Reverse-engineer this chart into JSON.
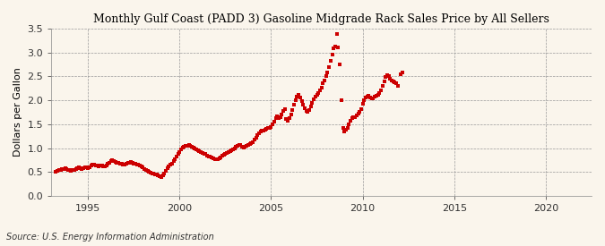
{
  "title": "Monthly Gulf Coast (PADD 3) Gasoline Midgrade Rack Sales Price by All Sellers",
  "ylabel": "Dollars per Gallon",
  "source": "Source: U.S. Energy Information Administration",
  "background_color": "#FAF5EC",
  "dot_color": "#CC0000",
  "xlim": [
    1993.0,
    2022.5
  ],
  "ylim": [
    0.0,
    3.5
  ],
  "yticks": [
    0.0,
    0.5,
    1.0,
    1.5,
    2.0,
    2.5,
    3.0,
    3.5
  ],
  "xticks": [
    1995,
    2000,
    2005,
    2010,
    2015,
    2020
  ],
  "data": [
    [
      1993.25,
      0.5
    ],
    [
      1993.33,
      0.52
    ],
    [
      1993.42,
      0.54
    ],
    [
      1993.5,
      0.55
    ],
    [
      1993.58,
      0.57
    ],
    [
      1993.67,
      0.56
    ],
    [
      1993.75,
      0.58
    ],
    [
      1993.83,
      0.57
    ],
    [
      1993.92,
      0.55
    ],
    [
      1994.0,
      0.54
    ],
    [
      1994.08,
      0.53
    ],
    [
      1994.17,
      0.54
    ],
    [
      1994.25,
      0.55
    ],
    [
      1994.33,
      0.57
    ],
    [
      1994.42,
      0.58
    ],
    [
      1994.5,
      0.59
    ],
    [
      1994.58,
      0.58
    ],
    [
      1994.67,
      0.57
    ],
    [
      1994.75,
      0.58
    ],
    [
      1994.83,
      0.6
    ],
    [
      1994.92,
      0.59
    ],
    [
      1995.0,
      0.58
    ],
    [
      1995.08,
      0.6
    ],
    [
      1995.17,
      0.63
    ],
    [
      1995.25,
      0.65
    ],
    [
      1995.33,
      0.66
    ],
    [
      1995.42,
      0.64
    ],
    [
      1995.5,
      0.63
    ],
    [
      1995.58,
      0.62
    ],
    [
      1995.67,
      0.63
    ],
    [
      1995.75,
      0.64
    ],
    [
      1995.83,
      0.62
    ],
    [
      1995.92,
      0.61
    ],
    [
      1996.0,
      0.64
    ],
    [
      1996.08,
      0.67
    ],
    [
      1996.17,
      0.7
    ],
    [
      1996.25,
      0.72
    ],
    [
      1996.33,
      0.74
    ],
    [
      1996.42,
      0.73
    ],
    [
      1996.5,
      0.71
    ],
    [
      1996.58,
      0.7
    ],
    [
      1996.67,
      0.69
    ],
    [
      1996.75,
      0.68
    ],
    [
      1996.83,
      0.67
    ],
    [
      1996.92,
      0.66
    ],
    [
      1997.0,
      0.65
    ],
    [
      1997.08,
      0.67
    ],
    [
      1997.17,
      0.69
    ],
    [
      1997.25,
      0.7
    ],
    [
      1997.33,
      0.71
    ],
    [
      1997.42,
      0.7
    ],
    [
      1997.5,
      0.68
    ],
    [
      1997.58,
      0.67
    ],
    [
      1997.67,
      0.66
    ],
    [
      1997.75,
      0.65
    ],
    [
      1997.83,
      0.64
    ],
    [
      1997.92,
      0.62
    ],
    [
      1998.0,
      0.6
    ],
    [
      1998.08,
      0.57
    ],
    [
      1998.17,
      0.55
    ],
    [
      1998.25,
      0.53
    ],
    [
      1998.33,
      0.51
    ],
    [
      1998.42,
      0.49
    ],
    [
      1998.5,
      0.47
    ],
    [
      1998.58,
      0.46
    ],
    [
      1998.67,
      0.45
    ],
    [
      1998.75,
      0.44
    ],
    [
      1998.83,
      0.43
    ],
    [
      1998.92,
      0.41
    ],
    [
      1999.0,
      0.4
    ],
    [
      1999.08,
      0.43
    ],
    [
      1999.17,
      0.47
    ],
    [
      1999.25,
      0.52
    ],
    [
      1999.33,
      0.58
    ],
    [
      1999.42,
      0.62
    ],
    [
      1999.5,
      0.65
    ],
    [
      1999.58,
      0.68
    ],
    [
      1999.67,
      0.72
    ],
    [
      1999.75,
      0.77
    ],
    [
      1999.83,
      0.82
    ],
    [
      1999.92,
      0.88
    ],
    [
      2000.0,
      0.92
    ],
    [
      2000.08,
      0.98
    ],
    [
      2000.17,
      1.01
    ],
    [
      2000.25,
      1.03
    ],
    [
      2000.33,
      1.04
    ],
    [
      2000.42,
      1.05
    ],
    [
      2000.5,
      1.06
    ],
    [
      2000.58,
      1.04
    ],
    [
      2000.67,
      1.02
    ],
    [
      2000.75,
      1.01
    ],
    [
      2000.83,
      0.99
    ],
    [
      2000.92,
      0.97
    ],
    [
      2001.0,
      0.95
    ],
    [
      2001.08,
      0.93
    ],
    [
      2001.17,
      0.91
    ],
    [
      2001.25,
      0.9
    ],
    [
      2001.33,
      0.88
    ],
    [
      2001.42,
      0.87
    ],
    [
      2001.5,
      0.85
    ],
    [
      2001.58,
      0.83
    ],
    [
      2001.67,
      0.82
    ],
    [
      2001.75,
      0.8
    ],
    [
      2001.83,
      0.79
    ],
    [
      2001.92,
      0.77
    ],
    [
      2002.0,
      0.76
    ],
    [
      2002.08,
      0.77
    ],
    [
      2002.17,
      0.79
    ],
    [
      2002.25,
      0.81
    ],
    [
      2002.33,
      0.84
    ],
    [
      2002.42,
      0.86
    ],
    [
      2002.5,
      0.88
    ],
    [
      2002.58,
      0.9
    ],
    [
      2002.67,
      0.91
    ],
    [
      2002.75,
      0.93
    ],
    [
      2002.83,
      0.95
    ],
    [
      2002.92,
      0.97
    ],
    [
      2003.0,
      1.0
    ],
    [
      2003.08,
      1.03
    ],
    [
      2003.17,
      1.05
    ],
    [
      2003.25,
      1.06
    ],
    [
      2003.33,
      1.07
    ],
    [
      2003.42,
      1.03
    ],
    [
      2003.5,
      1.01
    ],
    [
      2003.58,
      1.02
    ],
    [
      2003.67,
      1.04
    ],
    [
      2003.75,
      1.06
    ],
    [
      2003.83,
      1.08
    ],
    [
      2003.92,
      1.1
    ],
    [
      2004.0,
      1.13
    ],
    [
      2004.08,
      1.17
    ],
    [
      2004.17,
      1.22
    ],
    [
      2004.25,
      1.27
    ],
    [
      2004.33,
      1.31
    ],
    [
      2004.42,
      1.34
    ],
    [
      2004.5,
      1.36
    ],
    [
      2004.58,
      1.37
    ],
    [
      2004.67,
      1.39
    ],
    [
      2004.75,
      1.41
    ],
    [
      2004.83,
      1.42
    ],
    [
      2004.92,
      1.43
    ],
    [
      2005.0,
      1.44
    ],
    [
      2005.08,
      1.5
    ],
    [
      2005.17,
      1.56
    ],
    [
      2005.25,
      1.62
    ],
    [
      2005.33,
      1.67
    ],
    [
      2005.42,
      1.62
    ],
    [
      2005.5,
      1.65
    ],
    [
      2005.58,
      1.7
    ],
    [
      2005.67,
      1.78
    ],
    [
      2005.75,
      1.82
    ],
    [
      2005.83,
      1.6
    ],
    [
      2005.92,
      1.58
    ],
    [
      2006.0,
      1.62
    ],
    [
      2006.08,
      1.7
    ],
    [
      2006.17,
      1.8
    ],
    [
      2006.25,
      1.9
    ],
    [
      2006.33,
      2.0
    ],
    [
      2006.42,
      2.08
    ],
    [
      2006.5,
      2.12
    ],
    [
      2006.58,
      2.05
    ],
    [
      2006.67,
      1.98
    ],
    [
      2006.75,
      1.9
    ],
    [
      2006.83,
      1.83
    ],
    [
      2006.92,
      1.78
    ],
    [
      2007.0,
      1.75
    ],
    [
      2007.08,
      1.8
    ],
    [
      2007.17,
      1.88
    ],
    [
      2007.25,
      1.95
    ],
    [
      2007.33,
      2.02
    ],
    [
      2007.42,
      2.08
    ],
    [
      2007.5,
      2.12
    ],
    [
      2007.58,
      2.16
    ],
    [
      2007.67,
      2.2
    ],
    [
      2007.75,
      2.26
    ],
    [
      2007.83,
      2.35
    ],
    [
      2007.92,
      2.42
    ],
    [
      2008.0,
      2.5
    ],
    [
      2008.08,
      2.58
    ],
    [
      2008.17,
      2.7
    ],
    [
      2008.25,
      2.82
    ],
    [
      2008.33,
      2.95
    ],
    [
      2008.42,
      3.08
    ],
    [
      2008.5,
      3.12
    ],
    [
      2008.58,
      3.38
    ],
    [
      2008.67,
      3.1
    ],
    [
      2008.75,
      2.75
    ],
    [
      2008.83,
      2.0
    ],
    [
      2008.92,
      1.42
    ],
    [
      2009.0,
      1.35
    ],
    [
      2009.08,
      1.38
    ],
    [
      2009.17,
      1.42
    ],
    [
      2009.25,
      1.5
    ],
    [
      2009.33,
      1.58
    ],
    [
      2009.42,
      1.62
    ],
    [
      2009.5,
      1.65
    ],
    [
      2009.58,
      1.65
    ],
    [
      2009.67,
      1.68
    ],
    [
      2009.75,
      1.72
    ],
    [
      2009.83,
      1.76
    ],
    [
      2009.92,
      1.82
    ],
    [
      2010.0,
      1.92
    ],
    [
      2010.08,
      2.0
    ],
    [
      2010.17,
      2.05
    ],
    [
      2010.25,
      2.07
    ],
    [
      2010.33,
      2.09
    ],
    [
      2010.42,
      2.06
    ],
    [
      2010.5,
      2.03
    ],
    [
      2010.58,
      2.04
    ],
    [
      2010.67,
      2.08
    ],
    [
      2010.75,
      2.1
    ],
    [
      2010.83,
      2.12
    ],
    [
      2010.92,
      2.15
    ],
    [
      2011.0,
      2.2
    ],
    [
      2011.08,
      2.3
    ],
    [
      2011.17,
      2.4
    ],
    [
      2011.25,
      2.48
    ],
    [
      2011.33,
      2.52
    ],
    [
      2011.42,
      2.5
    ],
    [
      2011.5,
      2.45
    ],
    [
      2011.58,
      2.42
    ],
    [
      2011.67,
      2.4
    ],
    [
      2011.75,
      2.38
    ],
    [
      2011.83,
      2.35
    ],
    [
      2011.92,
      2.3
    ],
    [
      2012.08,
      2.55
    ],
    [
      2012.17,
      2.58
    ]
  ]
}
